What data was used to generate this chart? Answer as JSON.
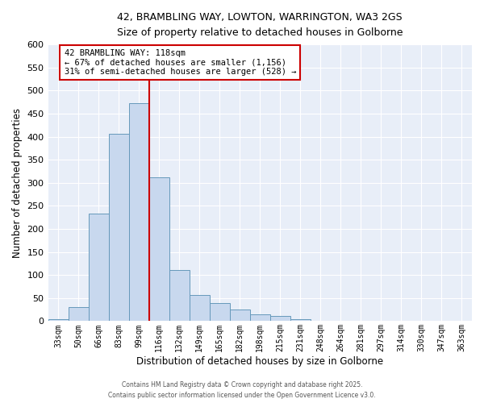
{
  "title1": "42, BRAMBLING WAY, LOWTON, WARRINGTON, WA3 2GS",
  "title2": "Size of property relative to detached houses in Golborne",
  "xlabel": "Distribution of detached houses by size in Golborne",
  "ylabel": "Number of detached properties",
  "categories": [
    "33sqm",
    "50sqm",
    "66sqm",
    "83sqm",
    "99sqm",
    "116sqm",
    "132sqm",
    "149sqm",
    "165sqm",
    "182sqm",
    "198sqm",
    "215sqm",
    "231sqm",
    "248sqm",
    "264sqm",
    "281sqm",
    "297sqm",
    "314sqm",
    "330sqm",
    "347sqm",
    "363sqm"
  ],
  "values": [
    5,
    30,
    233,
    406,
    472,
    312,
    110,
    57,
    40,
    26,
    15,
    12,
    5,
    0,
    0,
    0,
    0,
    0,
    0,
    0,
    0
  ],
  "bar_color": "#c8d8ee",
  "bar_edge_color": "#6699bb",
  "red_line_x": 5,
  "annotation_text": "42 BRAMBLING WAY: 118sqm\n← 67% of detached houses are smaller (1,156)\n31% of semi-detached houses are larger (528) →",
  "annotation_box_color": "#ffffff",
  "annotation_box_edge": "#cc0000",
  "ylim": [
    0,
    600
  ],
  "yticks": [
    0,
    50,
    100,
    150,
    200,
    250,
    300,
    350,
    400,
    450,
    500,
    550,
    600
  ],
  "background_color": "#e8eef8",
  "footer_text": "Contains HM Land Registry data © Crown copyright and database right 2025.\nContains public sector information licensed under the Open Government Licence v3.0."
}
